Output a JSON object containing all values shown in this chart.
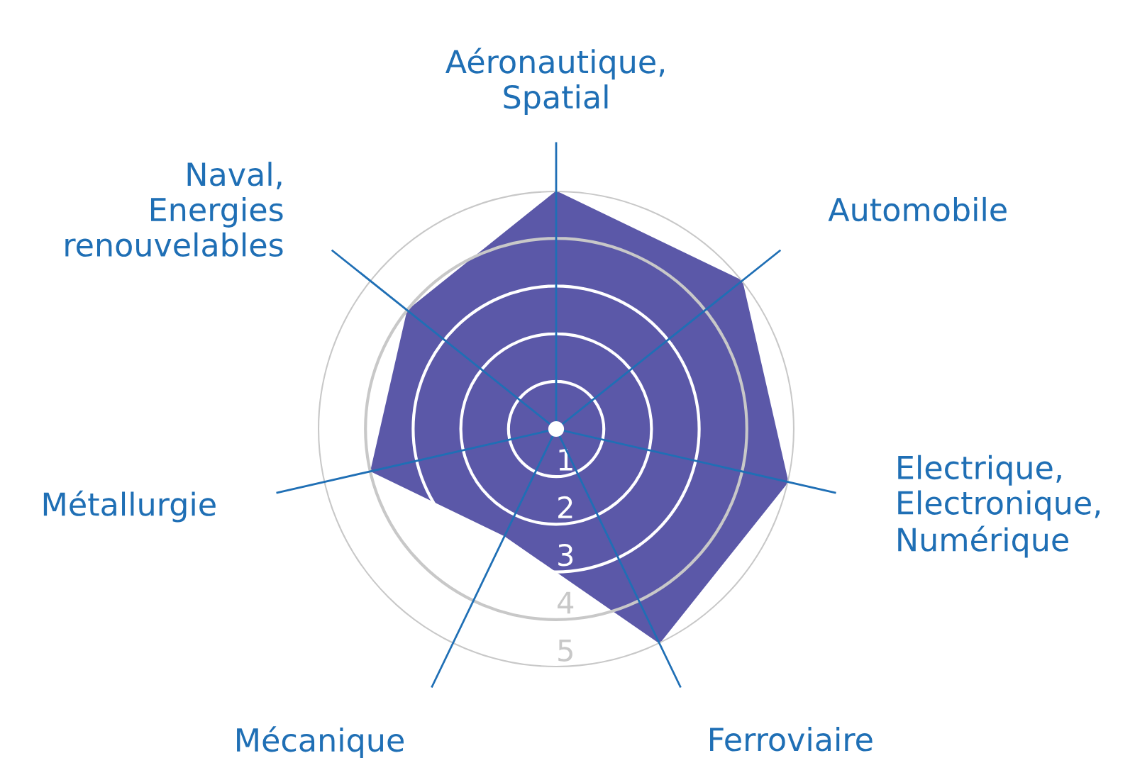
{
  "chart_data": {
    "type": "radar",
    "categories": [
      "Aéronautique,\nSpatial",
      "Automobile",
      "Electrique,\nElectronique,\nNumérique",
      "Ferroviaire",
      "Mécanique",
      "Métallurgie",
      "Naval,\nEnergies\nrenouvelables"
    ],
    "series": [
      {
        "color": "#5b58a8",
        "values": [
          5,
          5,
          5,
          5,
          2.5,
          4,
          4
        ]
      }
    ],
    "ylim": [
      0,
      5
    ],
    "yticks": [
      1,
      2,
      3,
      4,
      5
    ],
    "grid": true
  }
}
